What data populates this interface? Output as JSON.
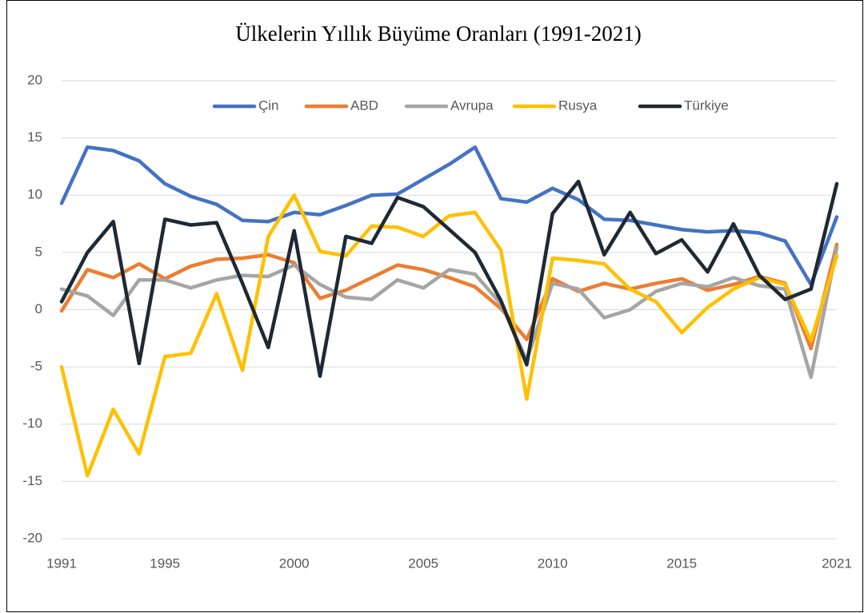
{
  "chart_data": {
    "type": "line",
    "title": "Ülkelerin Yıllık Büyüme Oranları (1991-2021)",
    "x": [
      1991,
      1992,
      1993,
      1994,
      1995,
      1996,
      1997,
      1998,
      1999,
      2000,
      2001,
      2002,
      2003,
      2004,
      2005,
      2006,
      2007,
      2008,
      2009,
      2010,
      2011,
      2012,
      2013,
      2014,
      2015,
      2016,
      2017,
      2018,
      2019,
      2020,
      2021
    ],
    "xlim": [
      1991,
      2021
    ],
    "xticks": [
      1991,
      1995,
      2000,
      2005,
      2010,
      2015,
      2021
    ],
    "ylim": [
      -20,
      20
    ],
    "yticks": [
      -20,
      -15,
      -10,
      -5,
      0,
      5,
      10,
      15,
      20
    ],
    "grid": true,
    "legend": "top",
    "series": [
      {
        "name": "Çin",
        "color": "#4472c4",
        "values": [
          9.3,
          14.2,
          13.9,
          13.0,
          11.0,
          9.9,
          9.2,
          7.8,
          7.7,
          8.5,
          8.3,
          9.1,
          10.0,
          10.1,
          11.4,
          12.7,
          14.2,
          9.7,
          9.4,
          10.6,
          9.6,
          7.9,
          7.8,
          7.4,
          7.0,
          6.8,
          6.9,
          6.7,
          6.0,
          2.2,
          8.1
        ]
      },
      {
        "name": "ABD",
        "color": "#ed7d31",
        "values": [
          -0.1,
          3.5,
          2.8,
          4.0,
          2.7,
          3.8,
          4.4,
          4.5,
          4.8,
          4.1,
          1.0,
          1.7,
          2.8,
          3.9,
          3.5,
          2.8,
          2.0,
          0.1,
          -2.6,
          2.7,
          1.6,
          2.3,
          1.8,
          2.3,
          2.7,
          1.7,
          2.2,
          2.9,
          2.3,
          -3.4,
          5.7
        ]
      },
      {
        "name": "Avrupa",
        "color": "#a5a5a5",
        "values": [
          1.8,
          1.2,
          -0.5,
          2.6,
          2.6,
          1.9,
          2.6,
          3.0,
          2.9,
          3.9,
          2.2,
          1.1,
          0.9,
          2.6,
          1.9,
          3.5,
          3.1,
          0.5,
          -4.4,
          2.3,
          1.8,
          -0.7,
          0.0,
          1.6,
          2.3,
          2.0,
          2.8,
          2.1,
          1.8,
          -5.9,
          5.4
        ]
      },
      {
        "name": "Rusya",
        "color": "#ffc000",
        "values": [
          -5.0,
          -14.5,
          -8.7,
          -12.6,
          -4.1,
          -3.8,
          1.4,
          -5.3,
          6.4,
          10.0,
          5.1,
          4.7,
          7.3,
          7.2,
          6.4,
          8.2,
          8.5,
          5.2,
          -7.8,
          4.5,
          4.3,
          4.0,
          1.8,
          0.7,
          -2.0,
          0.2,
          1.8,
          2.8,
          2.2,
          -2.7,
          4.7
        ]
      },
      {
        "name": "Türkiye",
        "color": "#1f2933",
        "values": [
          0.7,
          5.0,
          7.7,
          -4.7,
          7.9,
          7.4,
          7.6,
          2.3,
          -3.3,
          6.9,
          -5.8,
          6.4,
          5.8,
          9.8,
          9.0,
          7.0,
          5.0,
          0.8,
          -4.8,
          8.4,
          11.2,
          4.8,
          8.5,
          4.9,
          6.1,
          3.3,
          7.5,
          3.0,
          0.9,
          1.8,
          11.0
        ]
      }
    ]
  }
}
